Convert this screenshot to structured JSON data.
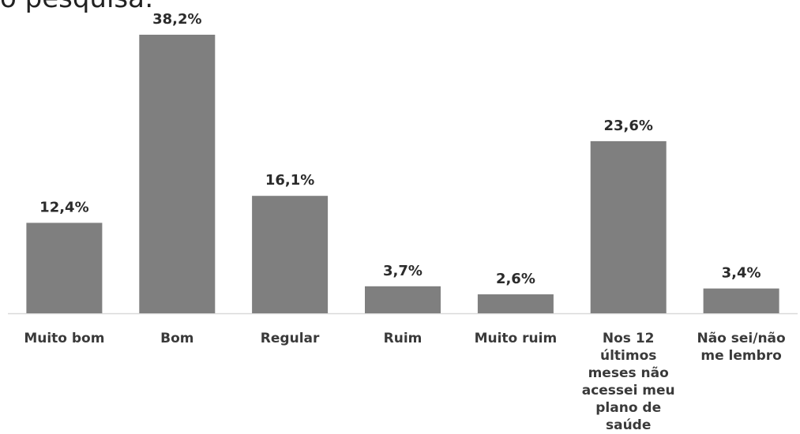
{
  "title": "o pesquisa:",
  "chart_data": {
    "type": "bar",
    "categories": [
      "Muito bom",
      "Bom",
      "Regular",
      "Ruim",
      "Muito ruim",
      "Nos 12 últimos meses não acessei meu plano de saúde",
      "Não sei/não me lembro"
    ],
    "values": [
      12.4,
      38.2,
      16.1,
      3.7,
      2.6,
      23.6,
      3.4
    ],
    "value_labels": [
      "12,4%",
      "38,2%",
      "16,1%",
      "3,7%",
      "2,6%",
      "23,6%",
      "3,4%"
    ],
    "ylim": [
      0,
      40
    ],
    "grid": false,
    "legend": "none",
    "bar_color": "#7f7f7f",
    "axis_color": "#d9d9d9"
  }
}
